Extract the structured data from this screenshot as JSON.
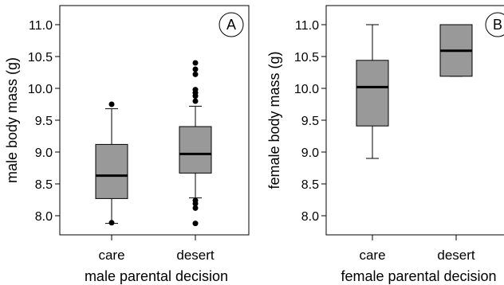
{
  "chart_data": [
    {
      "type": "box",
      "panel_label": "A",
      "categories": [
        "care",
        "desert"
      ],
      "xlabel": "male parental decision",
      "ylabel": "male body mass (g)",
      "ylim": [
        7.7,
        11.3
      ],
      "yticks": [
        8.0,
        8.5,
        9.0,
        9.5,
        10.0,
        10.5,
        11.0
      ],
      "ytick_labels": [
        "8.0",
        "8.5",
        "9.0",
        "9.5",
        "10.0",
        "10.5",
        "11.0"
      ],
      "boxes": [
        {
          "category": "care",
          "q1": 8.27,
          "median": 8.63,
          "q3": 9.12,
          "whisker_low": 7.88,
          "whisker_high": 9.68,
          "outliers": [
            9.75,
            7.89
          ]
        },
        {
          "category": "desert",
          "q1": 8.67,
          "median": 8.97,
          "q3": 9.4,
          "whisker_low": 8.28,
          "whisker_high": 9.72,
          "outliers": [
            10.4,
            10.3,
            10.22,
            9.98,
            9.93,
            9.88,
            9.8,
            8.24,
            8.19,
            8.12,
            7.88
          ]
        }
      ],
      "grid": false,
      "box_color": "#999999"
    },
    {
      "type": "box",
      "panel_label": "B",
      "categories": [
        "care",
        "desert"
      ],
      "xlabel": "female parental decision",
      "ylabel": "female body mass (g)",
      "ylim": [
        7.7,
        11.3
      ],
      "yticks": [
        8.0,
        8.5,
        9.0,
        9.5,
        10.0,
        10.5,
        11.0
      ],
      "ytick_labels": [
        "8.0",
        "8.5",
        "9.0",
        "9.5",
        "10.0",
        "10.5",
        "11.0"
      ],
      "boxes": [
        {
          "category": "care",
          "q1": 9.41,
          "median": 10.02,
          "q3": 10.44,
          "whisker_low": 8.9,
          "whisker_high": 11.0,
          "outliers": []
        },
        {
          "category": "desert",
          "q1": 10.19,
          "median": 10.59,
          "q3": 11.0,
          "whisker_low": 10.19,
          "whisker_high": 11.0,
          "outliers": []
        }
      ],
      "grid": false,
      "box_color": "#999999"
    }
  ]
}
